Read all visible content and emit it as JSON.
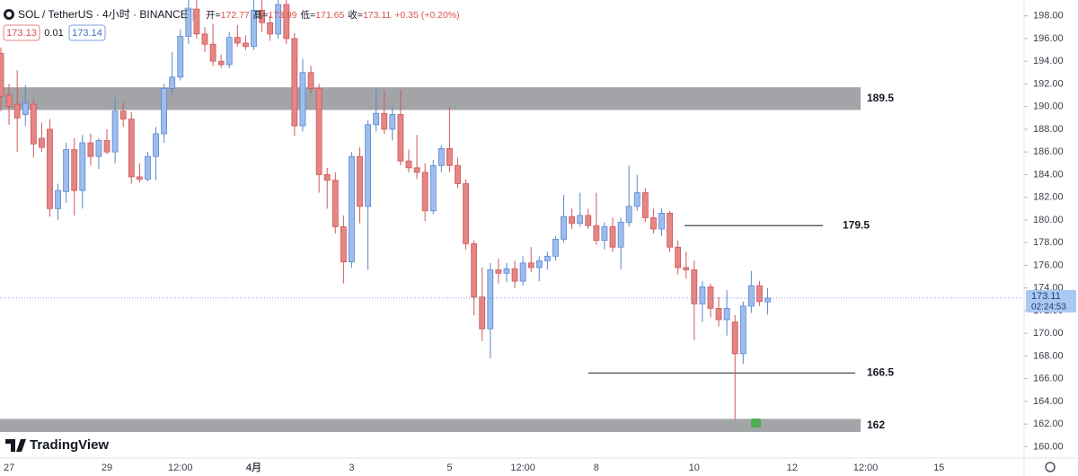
{
  "header": {
    "symbol": "SOL / TetherUS · 4小时 · BINANCE",
    "ohlc_labels": [
      "开=",
      "高=",
      "低=",
      "收="
    ],
    "change": "+0.35 (+0.20%)",
    "sell": 173.13,
    "spread": 0.01,
    "buy": 173.14,
    "countdown": "02:24:53",
    "brand": "TradingView"
  },
  "chart_data": {
    "type": "candlestick",
    "up_color": "#9dbdee",
    "down_color": "#e58585",
    "ylim": [
      159,
      199.4
    ],
    "yticks": [
      {
        "value": 160,
        "label": "160.00"
      },
      {
        "value": 162,
        "label": "162.00"
      },
      {
        "value": 164,
        "label": "164.00"
      },
      {
        "value": 166,
        "label": "166.00"
      },
      {
        "value": 168,
        "label": "168.00"
      },
      {
        "value": 170,
        "label": "170.00"
      },
      {
        "value": 172,
        "label": "172.00"
      },
      {
        "value": 174,
        "label": "174.00"
      },
      {
        "value": 176,
        "label": "176.00"
      },
      {
        "value": 178,
        "label": "178.00"
      },
      {
        "value": 180,
        "label": "180.00"
      },
      {
        "value": 182,
        "label": "182.00"
      },
      {
        "value": 184,
        "label": "184.00"
      },
      {
        "value": 186,
        "label": "186.00"
      },
      {
        "value": 188,
        "label": "188.00"
      },
      {
        "value": 190,
        "label": "190.00"
      },
      {
        "value": 192,
        "label": "192.00"
      },
      {
        "value": 194,
        "label": "194.00"
      },
      {
        "value": 196,
        "label": "196.00"
      },
      {
        "value": 198,
        "label": "198.00"
      }
    ],
    "categories": [
      null,
      "27",
      null,
      null,
      null,
      null,
      null,
      null,
      null,
      null,
      null,
      null,
      null,
      "29",
      null,
      null,
      null,
      null,
      null,
      null,
      null,
      null,
      "12:00",
      null,
      null,
      null,
      null,
      null,
      null,
      null,
      null,
      "4月",
      null,
      null,
      null,
      null,
      null,
      null,
      null,
      null,
      null,
      null,
      null,
      "3",
      null,
      null,
      null,
      null,
      null,
      null,
      null,
      null,
      null,
      null,
      null,
      "5",
      null,
      null,
      null,
      null,
      null,
      null,
      null,
      null,
      "12:00",
      null,
      null,
      null,
      null,
      null,
      null,
      null,
      null,
      "8",
      null,
      null,
      null,
      null,
      null,
      null,
      null,
      null,
      null,
      null,
      null,
      "10",
      null,
      null,
      null,
      null,
      null,
      null,
      null,
      null,
      null,
      null,
      null,
      "12",
      null,
      null,
      null,
      null,
      null,
      null,
      null,
      null,
      "12:00",
      null,
      null,
      null,
      null,
      null,
      null,
      null,
      null,
      "15"
    ],
    "open": [
      194.7,
      191,
      190.2,
      189.3,
      190.2,
      187.2,
      188,
      181,
      182.5,
      186.2,
      182.6,
      186.8,
      185.6,
      187,
      186,
      189.6,
      188.9,
      183.8,
      183.6,
      185.6,
      187.6,
      191.6,
      192.6,
      196.2,
      198.6,
      196.4,
      195.5,
      194,
      193.7,
      196.1,
      195.6,
      195.3,
      198.5,
      197.4,
      196.4,
      199,
      196,
      188.3,
      193,
      191.6,
      184,
      183.5,
      179.4,
      176.3,
      185.6,
      181.2,
      188.4,
      189.4,
      188,
      189.3,
      185.2,
      184.6,
      184.2,
      180.8,
      184.8,
      186.3,
      184.8,
      183.2,
      177.9,
      173.2,
      170.4,
      175.6,
      175.3,
      175.7,
      174.6,
      176.2,
      175.8,
      176.4,
      176.8,
      178.3,
      180.3,
      179.7,
      180.4,
      179.5,
      178.2,
      179.4,
      177.6,
      179.8,
      181.2,
      182.4,
      180.2,
      179.2,
      180.6,
      177.6,
      175.8,
      175.6,
      172.6,
      174.1,
      172.2,
      171.2,
      171,
      168.2,
      172.4,
      174.2,
      172.77,
      null,
      null,
      null,
      null,
      null,
      null,
      null,
      null,
      null,
      null,
      null,
      null,
      null,
      null,
      null,
      null,
      null,
      null,
      null,
      null,
      null
    ],
    "high": [
      195.2,
      192,
      193.2,
      191.9,
      190.6,
      188.6,
      188.9,
      183.2,
      186.8,
      187.2,
      187.5,
      187.6,
      187.2,
      188,
      190.8,
      190.4,
      189.5,
      185,
      186,
      188.2,
      192,
      194.8,
      196.8,
      199.6,
      199.6,
      197,
      197.3,
      194.6,
      196.6,
      197.2,
      196.3,
      199.6,
      199.6,
      198,
      199.6,
      199.6,
      196.5,
      194.2,
      193.6,
      192,
      184.6,
      184.2,
      180.4,
      186,
      186.4,
      188.8,
      191.6,
      191.4,
      190,
      191.5,
      186.2,
      187.5,
      185,
      185.3,
      186.6,
      189.9,
      185.5,
      183.6,
      178.2,
      175.8,
      176.2,
      176.6,
      176.2,
      176.4,
      176.8,
      177.6,
      176.8,
      177.2,
      178.6,
      182.2,
      181,
      182.4,
      181,
      182.4,
      179.8,
      180.2,
      180.2,
      184.8,
      184,
      182.8,
      181,
      181,
      180.8,
      178.2,
      177.2,
      176.4,
      174.6,
      174.4,
      173.2,
      173.8,
      171.6,
      172.8,
      175.5,
      174.6,
      173.99,
      null,
      null,
      null,
      null,
      null,
      null,
      null,
      null,
      null,
      null,
      null,
      null,
      null,
      null,
      null,
      null,
      null,
      null,
      null,
      null,
      null
    ],
    "low": [
      189.6,
      188.4,
      186,
      188.3,
      185.5,
      186,
      180.3,
      180,
      181.5,
      180.4,
      181,
      184.8,
      184.5,
      185.8,
      185,
      188.2,
      183.2,
      183.3,
      183.4,
      183.5,
      186.8,
      191,
      192.3,
      195.5,
      196,
      194.8,
      193.6,
      193.4,
      193.4,
      195.3,
      195,
      195,
      196.6,
      195.8,
      196,
      195.5,
      187.4,
      187.8,
      191.2,
      182.4,
      181,
      178.8,
      174.4,
      175.8,
      179.7,
      175.6,
      187.8,
      187.6,
      187,
      184.8,
      184.2,
      183.6,
      179.9,
      180.5,
      184.2,
      184.2,
      182.8,
      177.4,
      171.6,
      169.3,
      167.8,
      174.4,
      174.5,
      174,
      174.2,
      175.4,
      174.6,
      175.6,
      176.4,
      178,
      179.2,
      179.4,
      179.2,
      177.8,
      177.4,
      177.2,
      175.6,
      179.4,
      180.8,
      179.8,
      178.8,
      178.6,
      177.2,
      175.2,
      174.8,
      169.4,
      171,
      171.4,
      170.6,
      169.8,
      162.4,
      167.3,
      171.8,
      172.4,
      171.65,
      null,
      null,
      null,
      null,
      null,
      null,
      null,
      null,
      null,
      null,
      null,
      null,
      null,
      null,
      null,
      null,
      null,
      null,
      null,
      null,
      null
    ],
    "close": [
      190.9,
      190,
      189,
      190.3,
      186.7,
      186.4,
      181,
      182.6,
      186.2,
      182.6,
      186.8,
      185.6,
      187,
      186,
      189.6,
      188.9,
      183.8,
      183.6,
      185.6,
      187.6,
      191.6,
      192.6,
      196.2,
      198.6,
      196.4,
      195.5,
      194,
      193.7,
      196.1,
      195.6,
      195.3,
      198.5,
      197.4,
      196.4,
      199,
      196,
      188.3,
      193,
      191.6,
      184,
      183.5,
      179.4,
      176.3,
      185.6,
      181.2,
      188.4,
      189.4,
      188,
      189.3,
      185.2,
      184.6,
      184.2,
      180.8,
      184.8,
      186.3,
      184.8,
      183.2,
      177.9,
      173.2,
      170.4,
      175.6,
      175.3,
      175.7,
      174.6,
      176.2,
      175.8,
      176.4,
      176.8,
      178.3,
      180.3,
      179.7,
      180.4,
      179.5,
      178.2,
      179.4,
      177.6,
      179.8,
      181.2,
      182.4,
      180.2,
      179.2,
      180.6,
      177.6,
      175.8,
      175.6,
      172.6,
      174.1,
      172.2,
      171.2,
      172.2,
      168.2,
      172.4,
      174.2,
      172.8,
      173.11,
      null,
      null,
      null,
      null,
      null,
      null,
      null,
      null,
      null,
      null,
      null,
      null,
      null,
      null,
      null,
      null,
      null,
      null,
      null,
      null,
      null
    ],
    "zones": [
      {
        "low": 189.7,
        "high": 191.7,
        "label": 189.5
      },
      {
        "low": 161.3,
        "high": 162.45,
        "label": 162
      }
    ],
    "lines": [
      {
        "value": 179.5
      },
      {
        "value": 166.5
      }
    ]
  }
}
